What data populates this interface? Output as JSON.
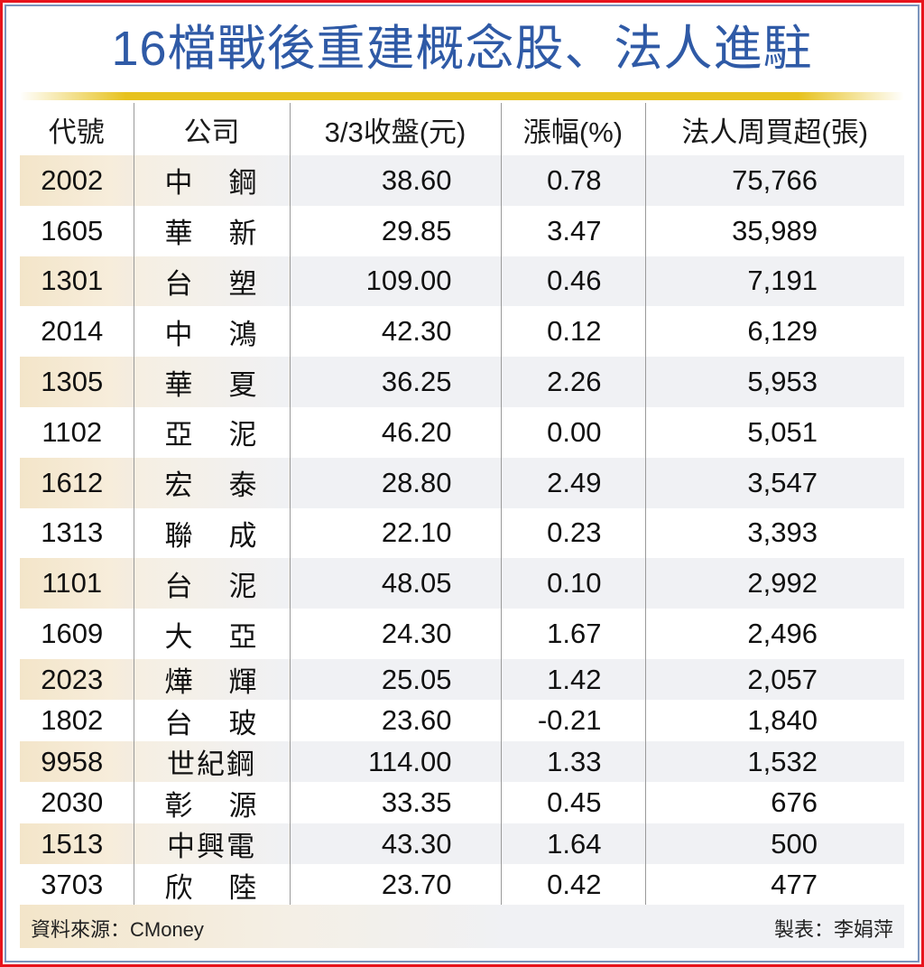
{
  "title": "16檔戰後重建概念股、法人進駐",
  "colors": {
    "title": "#2f5aa6",
    "rule": "#e7c21e",
    "frame_outer": "#e8141c",
    "frame_inner": "#7b95bd",
    "band": "#f0f1f4",
    "code_band": "#f3e5c9"
  },
  "table": {
    "headers": [
      "代號",
      "公司",
      "3/3收盤(元)",
      "漲幅(%)",
      "法人周買超(張)"
    ],
    "rows": [
      {
        "code": "2002",
        "name": [
          "中",
          "鋼"
        ],
        "close": "38.60",
        "change": "0.78",
        "net_buy": "75,766"
      },
      {
        "code": "1605",
        "name": [
          "華",
          "新"
        ],
        "close": "29.85",
        "change": "3.47",
        "net_buy": "35,989"
      },
      {
        "code": "1301",
        "name": [
          "台",
          "塑"
        ],
        "close": "109.00",
        "change": "0.46",
        "net_buy": "7,191"
      },
      {
        "code": "2014",
        "name": [
          "中",
          "鴻"
        ],
        "close": "42.30",
        "change": "0.12",
        "net_buy": "6,129"
      },
      {
        "code": "1305",
        "name": [
          "華",
          "夏"
        ],
        "close": "36.25",
        "change": "2.26",
        "net_buy": "5,953"
      },
      {
        "code": "1102",
        "name": [
          "亞",
          "泥"
        ],
        "close": "46.20",
        "change": "0.00",
        "net_buy": "5,051"
      },
      {
        "code": "1612",
        "name": [
          "宏",
          "泰"
        ],
        "close": "28.80",
        "change": "2.49",
        "net_buy": "3,547"
      },
      {
        "code": "1313",
        "name": [
          "聯",
          "成"
        ],
        "close": "22.10",
        "change": "0.23",
        "net_buy": "3,393"
      },
      {
        "code": "1101",
        "name": [
          "台",
          "泥"
        ],
        "close": "48.05",
        "change": "0.10",
        "net_buy": "2,992"
      },
      {
        "code": "1609",
        "name": [
          "大",
          "亞"
        ],
        "close": "24.30",
        "change": "1.67",
        "net_buy": "2,496"
      },
      {
        "code": "2023",
        "name": [
          "燁",
          "輝"
        ],
        "close": "25.05",
        "change": "1.42",
        "net_buy": "2,057"
      },
      {
        "code": "1802",
        "name": [
          "台",
          "玻"
        ],
        "close": "23.60",
        "change": "-0.21",
        "net_buy": "1,840"
      },
      {
        "code": "9958",
        "name": [
          "世紀鋼",
          ""
        ],
        "close": "114.00",
        "change": "1.33",
        "net_buy": "1,532"
      },
      {
        "code": "2030",
        "name": [
          "彰",
          "源"
        ],
        "close": "33.35",
        "change": "0.45",
        "net_buy": "676"
      },
      {
        "code": "1513",
        "name": [
          "中興電",
          ""
        ],
        "close": "43.30",
        "change": "1.64",
        "net_buy": "500"
      },
      {
        "code": "3703",
        "name": [
          "欣",
          "陸"
        ],
        "close": "23.70",
        "change": "0.42",
        "net_buy": "477"
      }
    ]
  },
  "footer": {
    "source": "資料來源：CMoney",
    "maker": "製表：李娟萍"
  }
}
